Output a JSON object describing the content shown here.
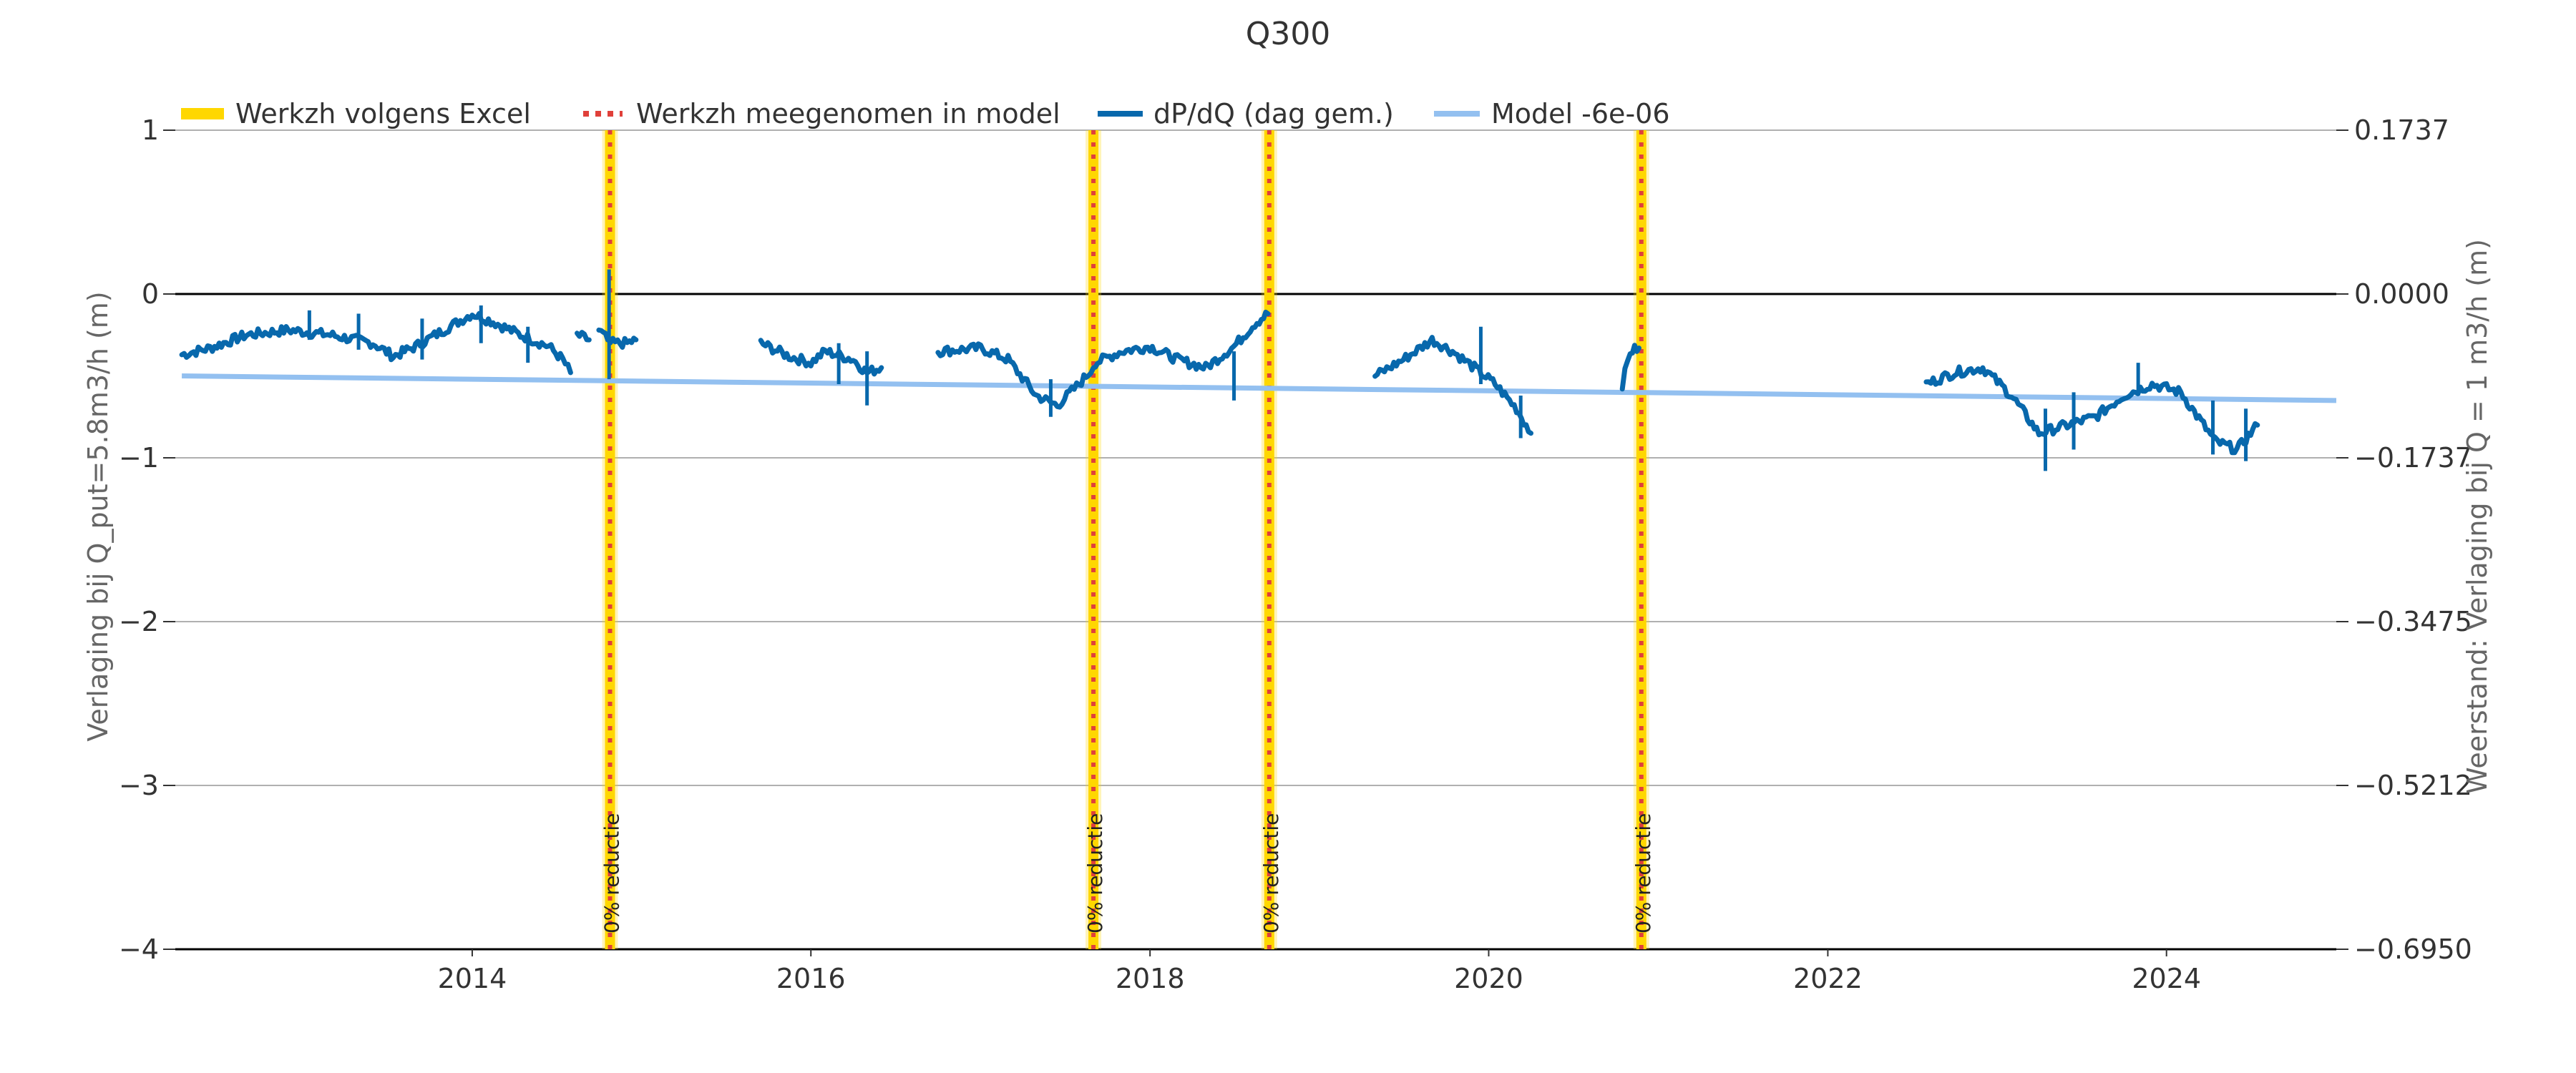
{
  "chart_data": {
    "type": "line",
    "title": "Q300",
    "ylabel": "Verlaging bij Q_put=5.8m3/h (m)",
    "ylabel_right": "Weerstand: Verlaging bij Q = 1 m3/h (m)",
    "ylim": [
      -4,
      1
    ],
    "yticks": [
      1,
      0,
      -1,
      -2,
      -3,
      -4
    ],
    "ytick_labels": [
      "1",
      "0",
      "−1",
      "−2",
      "−3",
      "−4"
    ],
    "ylim_right": [
      -0.695,
      0.1737
    ],
    "ytick_labels_right": [
      "0.1737",
      "0.0000",
      "−0.1737",
      "−0.3475",
      "−0.5212",
      "−0.6950"
    ],
    "xlim": [
      "2012-04-01",
      "2025-01-01"
    ],
    "xtick_labels": [
      "2014",
      "2016",
      "2018",
      "2020",
      "2022",
      "2024"
    ],
    "grid": true,
    "legend": {
      "placement": "top-left",
      "entries": [
        {
          "label": "Werkzh volgens Excel",
          "color": "#FFD700",
          "style": "thick"
        },
        {
          "label": "Werkzh meegenomen in model",
          "color": "#E0403A",
          "style": "dotted"
        },
        {
          "label": "dP/dQ (dag gem.)",
          "color": "#0868AC",
          "style": "line"
        },
        {
          "label": "Model -6e-06",
          "color": "#93C0F0",
          "style": "line"
        }
      ]
    },
    "maintenance_events": [
      {
        "date": "2014-10-25",
        "label": "0% reductie"
      },
      {
        "date": "2017-09-01",
        "label": "0% reductie"
      },
      {
        "date": "2018-09-15",
        "label": "0% reductie"
      },
      {
        "date": "2020-11-25",
        "label": "0% reductie"
      }
    ],
    "series": [
      {
        "name": "dP/dQ (dag gem.)",
        "color": "#0868AC",
        "segments": [
          [
            [
              "2012-04-15",
              -0.37
            ],
            [
              "2012-06-15",
              -0.33
            ],
            [
              "2012-09-01",
              -0.25
            ],
            [
              "2012-12-01",
              -0.22
            ],
            [
              "2013-03-01",
              -0.25
            ],
            [
              "2013-06-01",
              -0.3
            ],
            [
              "2013-07-15",
              -0.38
            ],
            [
              "2013-09-01",
              -0.32
            ],
            [
              "2013-11-01",
              -0.22
            ],
            [
              "2014-01-01",
              -0.12
            ],
            [
              "2014-02-15",
              -0.17
            ],
            [
              "2014-04-15",
              -0.25
            ],
            [
              "2014-06-15",
              -0.32
            ],
            [
              "2014-07-15",
              -0.4
            ],
            [
              "2014-08-01",
              -0.48
            ]
          ],
          [
            [
              "2014-08-15",
              -0.25
            ],
            [
              "2014-09-10",
              -0.28
            ]
          ],
          [
            [
              "2014-10-01",
              -0.22
            ],
            [
              "2014-10-20",
              -0.28
            ]
          ],
          [
            [
              "2014-10-26",
              -0.3
            ],
            [
              "2014-12-01",
              -0.3
            ],
            [
              "2014-12-20",
              -0.28
            ]
          ],
          [
            [
              "2015-09-15",
              -0.3
            ],
            [
              "2015-11-15",
              -0.38
            ],
            [
              "2016-01-01",
              -0.42
            ],
            [
              "2016-02-01",
              -0.35
            ],
            [
              "2016-04-01",
              -0.4
            ],
            [
              "2016-05-01",
              -0.48
            ],
            [
              "2016-06-01",
              -0.45
            ]
          ],
          [
            [
              "2016-10-01",
              -0.35
            ],
            [
              "2017-01-01",
              -0.33
            ],
            [
              "2017-03-01",
              -0.4
            ],
            [
              "2017-05-01",
              -0.62
            ],
            [
              "2017-06-15",
              -0.68
            ],
            [
              "2017-08-01",
              -0.55
            ],
            [
              "2017-09-01",
              -0.45
            ]
          ],
          [
            [
              "2017-09-05",
              -0.42
            ],
            [
              "2017-11-01",
              -0.35
            ],
            [
              "2018-01-01",
              -0.32
            ],
            [
              "2018-03-01",
              -0.4
            ],
            [
              "2018-05-01",
              -0.45
            ],
            [
              "2018-07-01",
              -0.32
            ],
            [
              "2018-08-15",
              -0.18
            ],
            [
              "2018-09-12",
              -0.12
            ]
          ],
          [
            [
              "2019-05-01",
              -0.5
            ],
            [
              "2019-07-01",
              -0.4
            ],
            [
              "2019-09-01",
              -0.28
            ],
            [
              "2019-10-15",
              -0.35
            ],
            [
              "2019-12-01",
              -0.45
            ],
            [
              "2020-01-15",
              -0.55
            ],
            [
              "2020-03-01",
              -0.7
            ],
            [
              "2020-04-01",
              -0.85
            ]
          ],
          [
            [
              "2020-10-15",
              -0.55
            ],
            [
              "2020-11-01",
              -0.35
            ],
            [
              "2020-11-20",
              -0.33
            ]
          ],
          [
            [
              "2022-08-01",
              -0.55
            ],
            [
              "2022-10-01",
              -0.48
            ],
            [
              "2022-12-01",
              -0.45
            ],
            [
              "2023-02-01",
              -0.62
            ],
            [
              "2023-04-01",
              -0.85
            ],
            [
              "2023-06-01",
              -0.8
            ],
            [
              "2023-08-01",
              -0.75
            ],
            [
              "2023-10-01",
              -0.62
            ],
            [
              "2023-12-01",
              -0.55
            ],
            [
              "2024-02-01",
              -0.6
            ],
            [
              "2024-03-01",
              -0.72
            ],
            [
              "2024-04-15",
              -0.9
            ],
            [
              "2024-06-01",
              -0.95
            ],
            [
              "2024-07-15",
              -0.8
            ]
          ]
        ],
        "spikes": [
          [
            "2013-01-15",
            -0.1,
            -0.28
          ],
          [
            "2013-05-01",
            -0.12,
            -0.34
          ],
          [
            "2013-09-15",
            -0.15,
            -0.4
          ],
          [
            "2014-01-20",
            -0.07,
            -0.3
          ],
          [
            "2014-05-01",
            -0.2,
            -0.42
          ],
          [
            "2014-10-23",
            0.15,
            -0.52
          ],
          [
            "2016-03-01",
            -0.3,
            -0.55
          ],
          [
            "2016-05-01",
            -0.35,
            -0.68
          ],
          [
            "2017-06-01",
            -0.52,
            -0.75
          ],
          [
            "2018-07-01",
            -0.35,
            -0.65
          ],
          [
            "2019-12-15",
            -0.2,
            -0.55
          ],
          [
            "2020-03-10",
            -0.62,
            -0.88
          ],
          [
            "2023-04-15",
            -0.7,
            -1.08
          ],
          [
            "2023-06-15",
            -0.6,
            -0.95
          ],
          [
            "2023-11-01",
            -0.42,
            -0.62
          ],
          [
            "2024-04-10",
            -0.65,
            -0.98
          ],
          [
            "2024-06-20",
            -0.7,
            -1.02
          ]
        ]
      },
      {
        "name": "Model -6e-06",
        "color": "#93C0F0",
        "points": [
          [
            "2012-04-15",
            -0.5
          ],
          [
            "2025-01-01",
            -0.65
          ]
        ]
      }
    ]
  }
}
